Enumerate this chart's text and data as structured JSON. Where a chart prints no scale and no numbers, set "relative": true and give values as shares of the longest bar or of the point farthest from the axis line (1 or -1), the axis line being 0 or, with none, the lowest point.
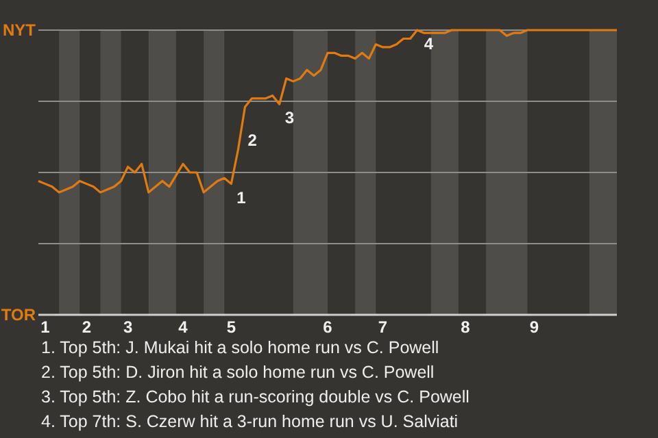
{
  "chart_data": {
    "type": "line",
    "relative": true,
    "categories": [
      null,
      "1",
      null,
      null,
      null,
      null,
      null,
      "2",
      null,
      null,
      null,
      null,
      null,
      "3",
      null,
      null,
      null,
      null,
      null,
      null,
      null,
      "4",
      null,
      null,
      null,
      null,
      null,
      null,
      "5",
      null,
      null,
      null,
      null,
      null,
      null,
      null,
      null,
      null,
      null,
      null,
      null,
      null,
      "6",
      null,
      null,
      null,
      null,
      null,
      null,
      null,
      "7",
      null,
      null,
      null,
      null,
      null,
      null,
      null,
      null,
      null,
      null,
      null,
      "8",
      null,
      null,
      null,
      null,
      null,
      null,
      null,
      null,
      null,
      "9",
      null,
      null,
      null,
      null,
      null,
      null,
      null,
      null,
      null,
      null,
      null,
      null
    ],
    "series": [
      {
        "color": "#e07b12",
        "values": [
          0.47,
          0.46,
          0.45,
          0.43,
          0.44,
          0.45,
          0.47,
          0.46,
          0.45,
          0.43,
          0.44,
          0.45,
          0.47,
          0.52,
          0.5,
          0.53,
          0.43,
          0.45,
          0.47,
          0.45,
          0.49,
          0.53,
          0.5,
          0.5,
          0.43,
          0.45,
          0.47,
          0.48,
          0.46,
          0.58,
          0.73,
          0.76,
          0.76,
          0.76,
          0.77,
          0.74,
          0.83,
          0.82,
          0.83,
          0.86,
          0.84,
          0.86,
          0.92,
          0.92,
          0.91,
          0.91,
          0.9,
          0.92,
          0.9,
          0.95,
          0.94,
          0.94,
          0.95,
          0.97,
          0.97,
          1,
          0.99,
          0.99,
          0.99,
          0.99,
          1,
          1,
          1,
          1,
          1,
          1,
          1,
          1,
          0.98,
          0.99,
          0.99,
          1,
          1,
          1,
          1,
          1,
          1,
          1,
          1,
          1,
          1,
          1,
          1,
          1,
          1
        ]
      }
    ],
    "grid": "y",
    "marker": "none",
    "line_style": "solid",
    "annotations": [
      "NYT",
      "TOR",
      "1",
      "2",
      "3",
      "4",
      "1. Top 5th: J. Mukai hit a solo home run vs C. Powell",
      "2. Top 5th: D. Jiron hit a solo home run vs C. Powell",
      "3. Top 5th: Z. Cobo hit a run-scoring double vs C. Powell",
      "4. Top 7th: S. Czerw hit a 3-run home run vs U. Salviati"
    ]
  }
}
